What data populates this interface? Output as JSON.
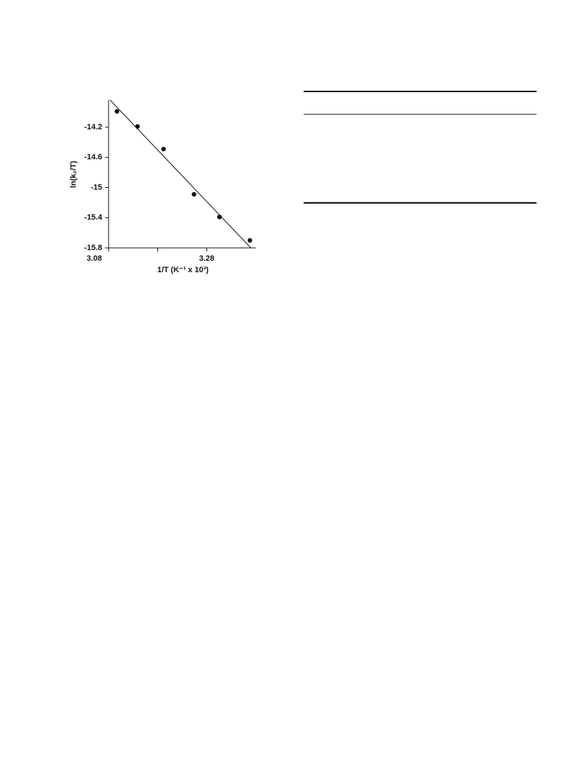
{
  "chart_data": {
    "type": "scatter",
    "x_label": "1/T (K⁻¹ x 10³)",
    "y_label": "ln(k₂/T)",
    "xlim": [
      3.08,
      3.38
    ],
    "ylim": [
      -15.8,
      -13.84
    ],
    "xticks": [
      3.08,
      3.28
    ],
    "xminor_ticks": [
      3.18
    ],
    "yticks": [
      -14.2,
      -14.6,
      -15,
      -15.4,
      -15.8
    ],
    "color": "#111111",
    "x": [
      3.097,
      3.139,
      3.192,
      3.254,
      3.306,
      3.368
    ],
    "values": [
      -13.99,
      -14.19,
      -14.49,
      -15.09,
      -15.39,
      -15.7
    ],
    "fit_line": {
      "x": [
        3.083,
        3.37
      ],
      "y": [
        -13.84,
        -15.8
      ]
    }
  }
}
